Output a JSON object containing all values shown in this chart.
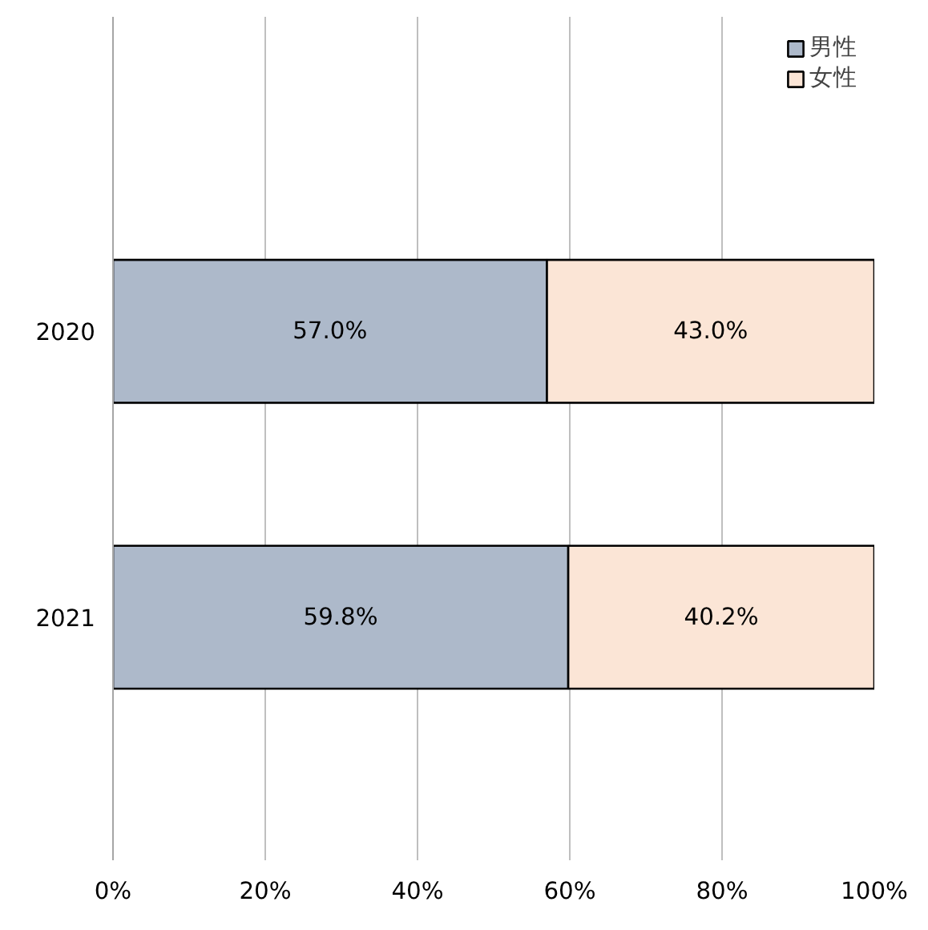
{
  "chart_data": {
    "type": "bar",
    "orientation": "horizontal",
    "stacked": true,
    "categories": [
      "2020",
      "2021"
    ],
    "series": [
      {
        "name": "男性",
        "color": "#adb9ca",
        "values": [
          57.0,
          59.8
        ],
        "value_labels": [
          "57.0%",
          "59.8%"
        ]
      },
      {
        "name": "女性",
        "color": "#fbe5d6",
        "values": [
          43.0,
          40.2
        ],
        "value_labels": [
          "43.0%",
          "40.2%"
        ]
      }
    ],
    "xlim": [
      0,
      100
    ],
    "xticks": [
      {
        "value": 0,
        "label": "0%"
      },
      {
        "value": 20,
        "label": "20%"
      },
      {
        "value": 40,
        "label": "40%"
      },
      {
        "value": 60,
        "label": "60%"
      },
      {
        "value": 80,
        "label": "80%"
      },
      {
        "value": 100,
        "label": "100%"
      }
    ],
    "grid": "x",
    "legend": "top right"
  }
}
